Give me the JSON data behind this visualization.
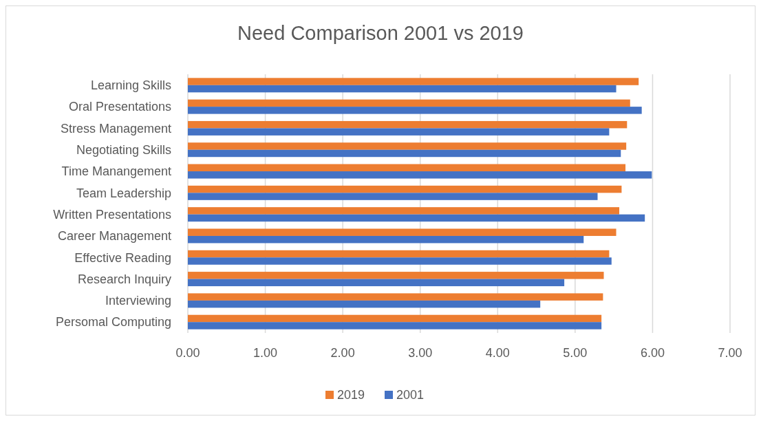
{
  "chart_data": {
    "type": "bar",
    "orientation": "horizontal",
    "title": "Need Comparison 2001 vs 2019",
    "categories": [
      "Learning Skills",
      "Oral Presentations",
      "Stress Management",
      "Negotiating Skills",
      "Time Manangement",
      "Team Leadership",
      "Written Presentations",
      "Career Management",
      "Effective Reading",
      "Research Inquiry",
      "Interviewing",
      "Persomal Computing"
    ],
    "series": [
      {
        "name": "2019",
        "color": "#ed7d31",
        "values": [
          5.82,
          5.71,
          5.67,
          5.66,
          5.65,
          5.6,
          5.57,
          5.53,
          5.44,
          5.37,
          5.36,
          5.34
        ]
      },
      {
        "name": "2001",
        "color": "#4472c4",
        "values": [
          5.53,
          5.86,
          5.44,
          5.59,
          5.99,
          5.29,
          5.9,
          5.11,
          5.47,
          4.86,
          4.55,
          5.34
        ]
      }
    ],
    "xlim": [
      0,
      7
    ],
    "xticks": [
      {
        "value": 0,
        "label": "0.00"
      },
      {
        "value": 1,
        "label": "1.00"
      },
      {
        "value": 2,
        "label": "2.00"
      },
      {
        "value": 3,
        "label": "3.00"
      },
      {
        "value": 4,
        "label": "4.00"
      },
      {
        "value": 5,
        "label": "5.00"
      },
      {
        "value": 6,
        "label": "6.00"
      },
      {
        "value": 7,
        "label": "7.00"
      }
    ],
    "grid": "x",
    "legend": "bottom"
  }
}
